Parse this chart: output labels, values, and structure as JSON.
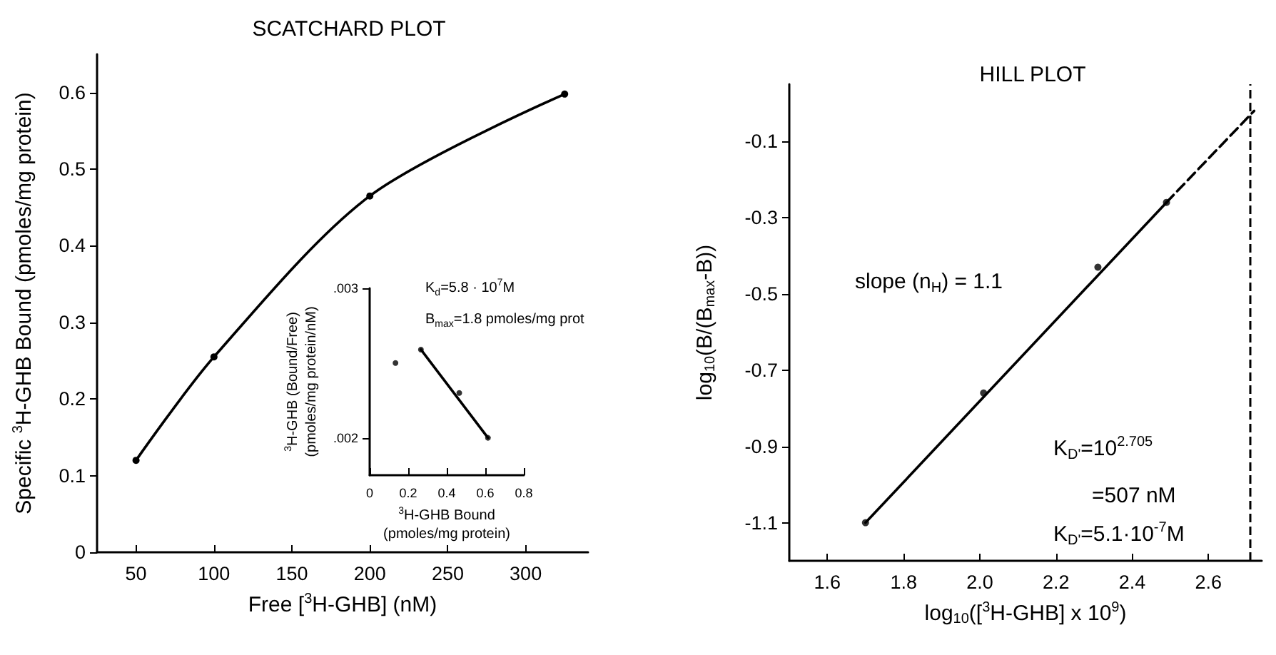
{
  "chart_data": [
    {
      "type": "line",
      "title": "SCATCHARD PLOT",
      "xlabel": "Free [$^{3}$H-GHB] (nM)",
      "ylabel": "Specific $^{3}$H-GHB Bound (pmoles/mg protein)",
      "xlim": [
        25,
        340
      ],
      "xticks": [
        50,
        100,
        150,
        200,
        250,
        300
      ],
      "ylim": [
        0,
        0.65
      ],
      "yticks": [
        0,
        0.1,
        0.2,
        0.3,
        0.4,
        0.5,
        0.6
      ],
      "grid": false,
      "marker": "circle",
      "line_style": "solid",
      "series": [
        {
          "color": "#000000",
          "x": [
            50,
            100,
            200,
            325
          ],
          "values": [
            0.12,
            0.255,
            0.465,
            0.598
          ]
        }
      ]
    },
    {
      "type": "scatter",
      "xlabel": "$^{3}$H-GHB Bound\n(pmoles/mg protein)",
      "ylabel": "$^{3}$H-GHB (Bound/Free)\n(pmoles/mg protein/nM)",
      "xlim": [
        0,
        0.8
      ],
      "xticks": [
        0,
        0.2,
        0.4,
        0.6,
        0.8
      ],
      "ylim": [
        0.00175,
        0.003
      ],
      "yticks": [
        {
          "value": 0.002,
          "label": ".002"
        },
        {
          "value": 0.003,
          "label": ".003"
        }
      ],
      "grid": false,
      "marker": "circle",
      "annotations": [
        "K$_{d}$=5.8 · 10$^{7}$M",
        "B$_{max}$=1.8 pmoles/mg prot"
      ],
      "series": [
        {
          "color": "#000000",
          "x": [
            0.134,
            0.266,
            0.465,
            0.614
          ],
          "values": [
            0.0025,
            0.00259,
            0.0023,
            0.002
          ]
        },
        {
          "type": "line",
          "color": "#000000",
          "marker": "none",
          "line_style": "solid",
          "x": [
            0.266,
            0.614
          ],
          "values": [
            0.00259,
            0.002
          ]
        }
      ]
    },
    {
      "type": "scatter",
      "title": "HILL PLOT",
      "xlabel": "log$_{10}$([$^{3}$H-GHB] x 10$^{9}$)",
      "ylabel": "log$_{10}$(B/(B$_{max}$-B))",
      "xlim": [
        1.5,
        2.74
      ],
      "xticks": [
        1.6,
        1.8,
        {
          "value": 2.0,
          "label": "2.0"
        },
        2.2,
        2.4,
        2.6
      ],
      "ylim": [
        -1.2,
        0.05
      ],
      "yticks": [
        -1.1,
        -0.9,
        -0.7,
        -0.5,
        -0.3,
        -0.1
      ],
      "grid": false,
      "marker": "circle",
      "annotations": [
        "slope (n$_{H}$) = 1.1",
        "K$_{D'}$=10$^{2.705}$",
        "=507 nM",
        "K$_{D'}$=5.1·10$^{-7}$M"
      ],
      "ref_lines": [
        {
          "axis": "x",
          "value": 2.705,
          "line_style": "dashed"
        }
      ],
      "series": [
        {
          "color": "#000000",
          "x": [
            1.7,
            2.01,
            2.31,
            2.49
          ],
          "values": [
            -1.1,
            -0.76,
            -0.43,
            -0.26
          ]
        },
        {
          "type": "line",
          "color": "#000000",
          "marker": "none",
          "line_style": "solid",
          "x": [
            1.7,
            2.49
          ],
          "values": [
            -1.1,
            -0.26
          ]
        },
        {
          "type": "line",
          "color": "#000000",
          "marker": "none",
          "line_style": "dashed",
          "x": [
            2.49,
            2.72
          ],
          "values": [
            -0.26,
            -0.02
          ]
        }
      ]
    }
  ]
}
